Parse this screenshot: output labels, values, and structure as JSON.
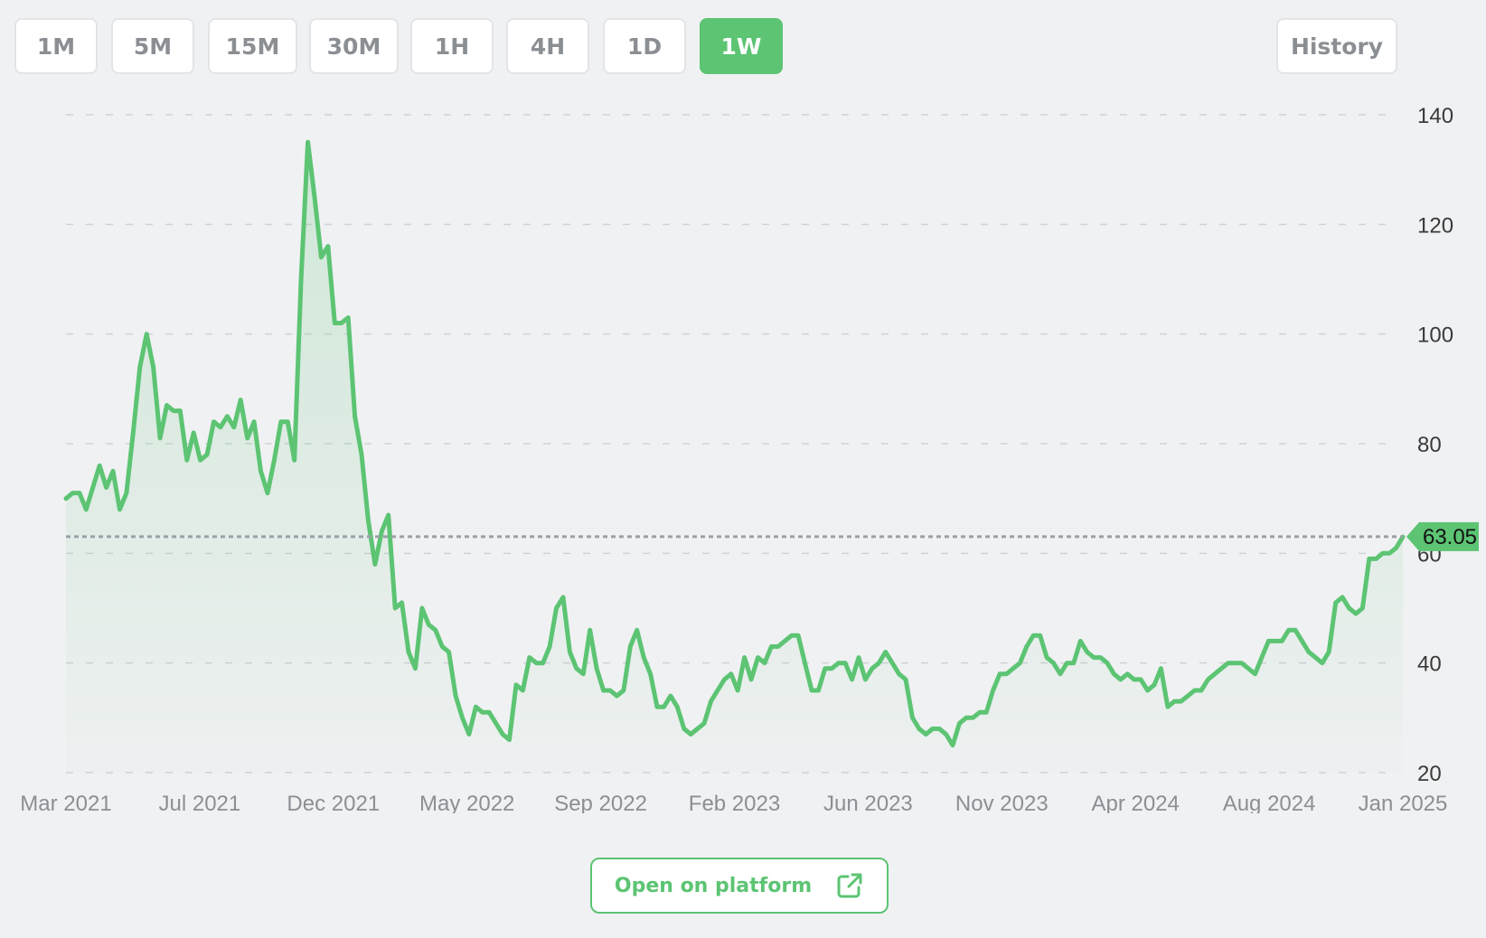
{
  "toolbar": {
    "timeframes": [
      "1M",
      "5M",
      "15M",
      "30M",
      "1H",
      "4H",
      "1D",
      "1W"
    ],
    "active": "1W",
    "history_label": "History"
  },
  "footer": {
    "open_label": "Open on platform"
  },
  "colors": {
    "accent": "#5cc473",
    "grid": "#cfd2d6",
    "axis_text": "#3a3a3a",
    "month_text": "#8b8f94"
  },
  "chart_data": {
    "type": "area",
    "title": "",
    "xlabel": "",
    "ylabel": "",
    "ylim": [
      20,
      140
    ],
    "yticks": [
      20,
      40,
      60,
      80,
      100,
      120,
      140
    ],
    "grid": true,
    "x_tick_labels": [
      "Mar 2021",
      "Jul 2021",
      "Dec 2021",
      "May 2022",
      "Sep 2022",
      "Feb 2023",
      "Jun 2023",
      "Nov 2023",
      "Apr 2024",
      "Aug 2024",
      "Jan 2025"
    ],
    "x_start": "2021-03",
    "x_end": "2025-01",
    "current_price": 63.05,
    "current_price_label": "63.05",
    "series": [
      {
        "values": [
          70,
          71,
          71,
          68,
          72,
          76,
          72,
          75,
          68,
          71,
          82,
          94,
          100,
          94,
          81,
          87,
          86,
          86,
          77,
          82,
          77,
          78,
          84,
          83,
          85,
          83,
          88,
          81,
          84,
          75,
          71,
          77,
          84,
          84,
          77,
          110,
          135,
          125,
          114,
          116,
          102,
          102,
          103,
          85,
          78,
          66,
          58,
          64,
          67,
          50,
          51,
          42,
          39,
          50,
          47,
          46,
          43,
          42,
          34,
          30,
          27,
          32,
          31,
          31,
          29,
          27,
          26,
          36,
          35,
          41,
          40,
          40,
          43,
          50,
          52,
          42,
          39,
          38,
          46,
          39,
          35,
          35,
          34,
          35,
          43,
          46,
          41,
          38,
          32,
          32,
          34,
          32,
          28,
          27,
          28,
          29,
          33,
          35,
          37,
          38,
          35,
          41,
          37,
          41,
          40,
          43,
          43,
          44,
          45,
          45,
          40,
          35,
          35,
          39,
          39,
          40,
          40,
          37,
          41,
          37,
          39,
          40,
          42,
          40,
          38,
          37,
          30,
          28,
          27,
          28,
          28,
          27,
          25,
          29,
          30,
          30,
          31,
          31,
          35,
          38,
          38,
          39,
          40,
          43,
          45,
          45,
          41,
          40,
          38,
          40,
          40,
          44,
          42,
          41,
          41,
          40,
          38,
          37,
          38,
          37,
          37,
          35,
          36,
          39,
          32,
          33,
          33,
          34,
          35,
          35,
          37,
          38,
          39,
          40,
          40,
          40,
          39,
          38,
          41,
          44,
          44,
          44,
          46,
          46,
          44,
          42,
          41,
          40,
          42,
          51,
          52,
          50,
          49,
          50,
          59,
          59,
          60,
          60,
          61,
          63
        ]
      }
    ]
  }
}
